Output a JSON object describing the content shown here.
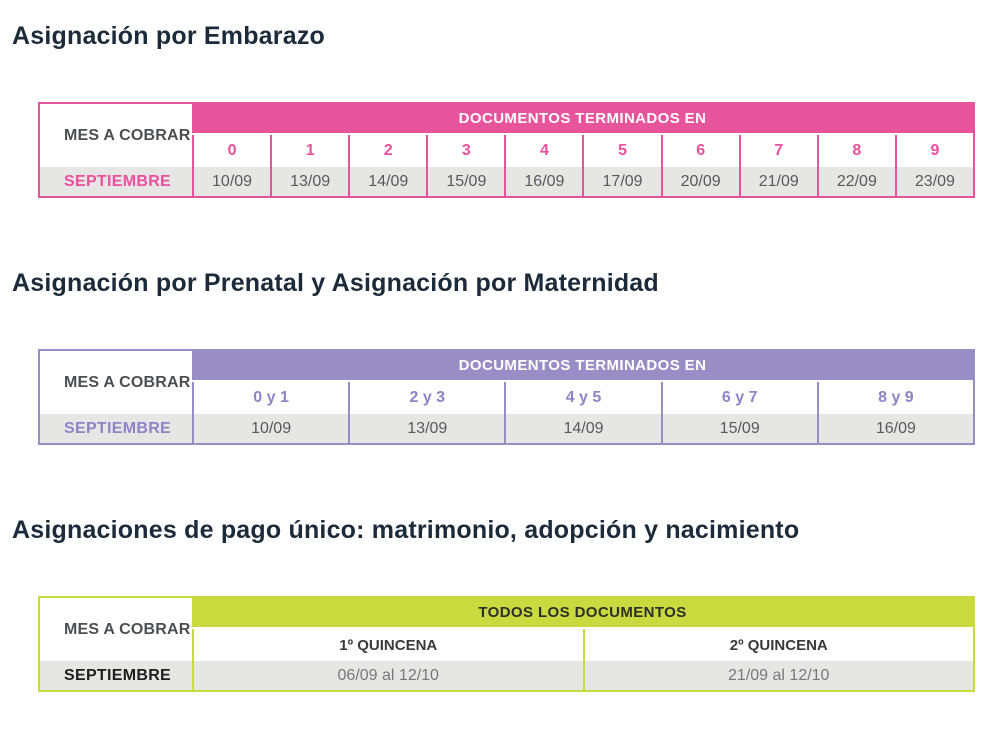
{
  "page": {
    "background": "#ffffff",
    "title_color": "#1c2b3a",
    "row_stripe_color": "#e6e6e5"
  },
  "sections": [
    {
      "title": "Asignación por Embarazo",
      "accent": "#e8549c",
      "band_text_color": "#ffffff",
      "row_label_header": "MES A COBRAR",
      "band_header": "DOCUMENTOS TERMINADOS EN",
      "columns": [
        "0",
        "1",
        "2",
        "3",
        "4",
        "5",
        "6",
        "7",
        "8",
        "9"
      ],
      "row_label": "SEPTIEMBRE",
      "values": [
        "10/09",
        "13/09",
        "14/09",
        "15/09",
        "16/09",
        "17/09",
        "20/09",
        "21/09",
        "22/09",
        "23/09"
      ]
    },
    {
      "title": "Asignación por Prenatal y Asignación por Maternidad",
      "accent": "#988dc4",
      "band_text_color": "#ffffff",
      "row_label_header": "MES A COBRAR",
      "band_header": "DOCUMENTOS TERMINADOS EN",
      "columns": [
        "0 y 1",
        "2 y 3",
        "4 y 5",
        "6 y 7",
        "8 y 9"
      ],
      "row_label": "SEPTIEMBRE",
      "values": [
        "10/09",
        "13/09",
        "14/09",
        "15/09",
        "16/09"
      ]
    },
    {
      "title": "Asignaciones de pago único: matrimonio, adopción y nacimiento",
      "accent": "#c9da3e",
      "band_text_color": "#2d2d2d",
      "row_label_header": "MES A COBRAR",
      "band_header": "TODOS LOS DOCUMENTOS",
      "columns": [
        "1º QUINCENA",
        "2º QUINCENA"
      ],
      "row_label": "SEPTIEMBRE",
      "values": [
        "06/09 al 12/10",
        "21/09 al 12/10"
      ]
    }
  ]
}
